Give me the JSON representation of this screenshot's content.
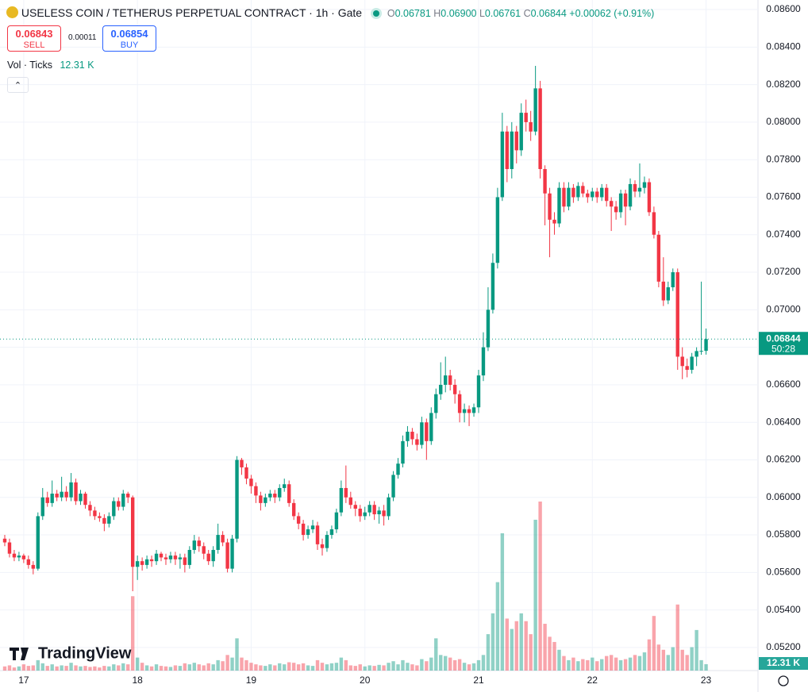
{
  "chart_data": {
    "type": "candlestick",
    "title": "USELESS COIN / TETHERUS PERPETUAL CONTRACT · 1h · Gate",
    "legend": {
      "o_label": "O",
      "o": "0.06781",
      "h_label": "H",
      "h": "0.06900",
      "l_label": "L",
      "l": "0.06761",
      "c_label": "C",
      "c": "0.06844",
      "change": "+0.00062 (+0.91%)"
    },
    "sell": {
      "price": "0.06843",
      "label": "SELL"
    },
    "spread": "0.00011",
    "buy": {
      "price": "0.06854",
      "label": "BUY"
    },
    "volume_name": "Vol · Ticks",
    "volume_legend": "12.31 K",
    "watermark": "TradingView",
    "last_price": {
      "value": 0.06844,
      "label": "0.06844"
    },
    "countdown": "50:28",
    "up_color": "#089981",
    "down_color": "#f23645",
    "grid": true,
    "ylim": [
      0.05077,
      0.08651
    ],
    "yticks": [
      {
        "value": 0.052,
        "label": "0.05200"
      },
      {
        "value": 0.054,
        "label": "0.05400"
      },
      {
        "value": 0.056,
        "label": "0.05600"
      },
      {
        "value": 0.058,
        "label": "0.05800"
      },
      {
        "value": 0.06,
        "label": "0.06000"
      },
      {
        "value": 0.062,
        "label": "0.06200"
      },
      {
        "value": 0.064,
        "label": "0.06400"
      },
      {
        "value": 0.066,
        "label": "0.06600"
      },
      {
        "value": 0.068,
        "label": "0.06800"
      },
      {
        "value": 0.07,
        "label": "0.07000"
      },
      {
        "value": 0.072,
        "label": "0.07200"
      },
      {
        "value": 0.074,
        "label": "0.07400"
      },
      {
        "value": 0.076,
        "label": "0.07600"
      },
      {
        "value": 0.078,
        "label": "0.07800"
      },
      {
        "value": 0.08,
        "label": "0.08000"
      },
      {
        "value": 0.082,
        "label": "0.08200"
      },
      {
        "value": 0.084,
        "label": "0.08400"
      },
      {
        "value": 0.086,
        "label": "0.08600"
      }
    ],
    "categories": [
      null,
      null,
      null,
      null,
      "17",
      null,
      null,
      null,
      null,
      null,
      null,
      null,
      null,
      null,
      null,
      null,
      null,
      null,
      null,
      null,
      null,
      null,
      null,
      null,
      null,
      null,
      null,
      null,
      "18",
      null,
      null,
      null,
      null,
      null,
      null,
      null,
      null,
      null,
      null,
      null,
      null,
      null,
      null,
      null,
      null,
      null,
      null,
      null,
      null,
      null,
      null,
      null,
      "19",
      null,
      null,
      null,
      null,
      null,
      null,
      null,
      null,
      null,
      null,
      null,
      null,
      null,
      null,
      null,
      null,
      null,
      null,
      null,
      null,
      null,
      null,
      null,
      "20",
      null,
      null,
      null,
      null,
      null,
      null,
      null,
      null,
      null,
      null,
      null,
      null,
      null,
      null,
      null,
      null,
      null,
      null,
      null,
      null,
      null,
      null,
      null,
      "21",
      null,
      null,
      null,
      null,
      null,
      null,
      null,
      null,
      null,
      null,
      null,
      null,
      null,
      null,
      null,
      null,
      null,
      null,
      null,
      null,
      null,
      null,
      null,
      "22",
      null,
      null,
      null,
      null,
      null,
      null,
      null,
      null,
      null,
      null,
      null,
      null,
      null,
      null,
      null,
      null,
      null,
      null,
      null,
      null,
      null,
      null,
      null,
      "23"
    ],
    "open": [
      0.0578,
      0.0576,
      0.057,
      0.0568,
      0.0569,
      0.0567,
      0.0564,
      0.0562,
      0.059,
      0.06,
      0.0597,
      0.0602,
      0.06,
      0.0603,
      0.06,
      0.0608,
      0.0598,
      0.0602,
      0.0596,
      0.0593,
      0.059,
      0.0589,
      0.0586,
      0.059,
      0.0598,
      0.0595,
      0.0602,
      0.06,
      0.0563,
      0.0566,
      0.0564,
      0.0567,
      0.0566,
      0.057,
      0.0568,
      0.0567,
      0.0569,
      0.0567,
      0.0568,
      0.0564,
      0.0572,
      0.0577,
      0.0574,
      0.057,
      0.0566,
      0.0572,
      0.058,
      0.0576,
      0.0562,
      0.0578,
      0.062,
      0.0616,
      0.061,
      0.0606,
      0.0601,
      0.0597,
      0.06,
      0.0602,
      0.06,
      0.0605,
      0.0607,
      0.0597,
      0.059,
      0.0586,
      0.058,
      0.0583,
      0.0585,
      0.0575,
      0.0573,
      0.058,
      0.0583,
      0.0592,
      0.0605,
      0.06,
      0.0596,
      0.0594,
      0.059,
      0.0592,
      0.0596,
      0.0591,
      0.0593,
      0.059,
      0.06,
      0.0612,
      0.0618,
      0.063,
      0.0635,
      0.0631,
      0.0628,
      0.064,
      0.063,
      0.0645,
      0.0655,
      0.066,
      0.0665,
      0.066,
      0.0655,
      0.0645,
      0.0647,
      0.0645,
      0.0648,
      0.0665,
      0.068,
      0.07,
      0.0725,
      0.076,
      0.0795,
      0.0775,
      0.0795,
      0.0785,
      0.0805,
      0.08,
      0.0795,
      0.0818,
      0.0775,
      0.0762,
      0.0748,
      0.0746,
      0.0765,
      0.0755,
      0.0765,
      0.076,
      0.0766,
      0.0762,
      0.076,
      0.0763,
      0.076,
      0.0765,
      0.0758,
      0.0755,
      0.0752,
      0.0762,
      0.0755,
      0.0767,
      0.0763,
      0.0765,
      0.0768,
      0.0752,
      0.074,
      0.0715,
      0.0705,
      0.0712,
      0.072,
      0.0675,
      0.067,
      0.0668,
      0.0675,
      0.0678,
      0.06781
    ],
    "high": [
      0.058,
      0.0578,
      0.0572,
      0.0571,
      0.057,
      0.0569,
      0.0566,
      0.0592,
      0.0605,
      0.0603,
      0.0609,
      0.0604,
      0.0611,
      0.0606,
      0.0613,
      0.061,
      0.0604,
      0.0603,
      0.0598,
      0.0595,
      0.0592,
      0.0591,
      0.0592,
      0.06,
      0.06,
      0.0604,
      0.0603,
      0.0601,
      0.0569,
      0.0568,
      0.0569,
      0.0569,
      0.0572,
      0.0571,
      0.057,
      0.0571,
      0.0571,
      0.057,
      0.057,
      0.0574,
      0.058,
      0.0579,
      0.0576,
      0.0572,
      0.0574,
      0.0586,
      0.0582,
      0.0578,
      0.058,
      0.0622,
      0.0621,
      0.0618,
      0.0612,
      0.0608,
      0.0603,
      0.0602,
      0.0604,
      0.0604,
      0.0607,
      0.061,
      0.0609,
      0.0599,
      0.0592,
      0.0588,
      0.0585,
      0.0588,
      0.0587,
      0.0578,
      0.0582,
      0.0585,
      0.0594,
      0.0609,
      0.0617,
      0.0603,
      0.0598,
      0.0596,
      0.0595,
      0.0598,
      0.0598,
      0.0595,
      0.0596,
      0.0602,
      0.0614,
      0.0621,
      0.0633,
      0.0638,
      0.0637,
      0.0634,
      0.0643,
      0.0642,
      0.0648,
      0.0658,
      0.0672,
      0.0675,
      0.0668,
      0.0663,
      0.0657,
      0.065,
      0.0649,
      0.065,
      0.0668,
      0.0688,
      0.0712,
      0.073,
      0.0765,
      0.0805,
      0.0798,
      0.08,
      0.0798,
      0.081,
      0.0812,
      0.0806,
      0.083,
      0.0822,
      0.0777,
      0.0765,
      0.0752,
      0.0768,
      0.0768,
      0.0768,
      0.0767,
      0.0768,
      0.0768,
      0.0764,
      0.0765,
      0.0765,
      0.0767,
      0.0767,
      0.076,
      0.0758,
      0.0764,
      0.0764,
      0.077,
      0.0769,
      0.0778,
      0.0771,
      0.077,
      0.0755,
      0.0742,
      0.0728,
      0.0715,
      0.0722,
      0.0722,
      0.068,
      0.0674,
      0.0677,
      0.068,
      0.0715,
      0.069
    ],
    "low": [
      0.0574,
      0.0568,
      0.0566,
      0.0566,
      0.0565,
      0.0562,
      0.0559,
      0.0561,
      0.0588,
      0.0595,
      0.0595,
      0.0598,
      0.0598,
      0.0598,
      0.0598,
      0.0596,
      0.0596,
      0.0594,
      0.059,
      0.0588,
      0.0587,
      0.0582,
      0.0584,
      0.0588,
      0.0593,
      0.0593,
      0.0597,
      0.055,
      0.0556,
      0.0561,
      0.0562,
      0.0563,
      0.0564,
      0.0566,
      0.0564,
      0.0565,
      0.0564,
      0.0562,
      0.056,
      0.0562,
      0.057,
      0.0571,
      0.0567,
      0.0564,
      0.0563,
      0.057,
      0.0574,
      0.056,
      0.056,
      0.0576,
      0.0612,
      0.0607,
      0.0602,
      0.0597,
      0.0593,
      0.0595,
      0.0598,
      0.0597,
      0.0598,
      0.0603,
      0.0595,
      0.0588,
      0.0583,
      0.0577,
      0.0578,
      0.0581,
      0.0572,
      0.0569,
      0.0571,
      0.0578,
      0.0581,
      0.059,
      0.0597,
      0.0594,
      0.059,
      0.0587,
      0.0588,
      0.059,
      0.0588,
      0.0586,
      0.0585,
      0.0588,
      0.0598,
      0.061,
      0.0616,
      0.0627,
      0.0628,
      0.0625,
      0.0626,
      0.062,
      0.0628,
      0.0642,
      0.0652,
      0.0656,
      0.0657,
      0.065,
      0.064,
      0.064,
      0.0638,
      0.0643,
      0.0645,
      0.0662,
      0.0678,
      0.0698,
      0.0722,
      0.0758,
      0.0768,
      0.077,
      0.0778,
      0.0782,
      0.0795,
      0.079,
      0.0793,
      0.077,
      0.0745,
      0.0728,
      0.074,
      0.0744,
      0.0752,
      0.0753,
      0.0757,
      0.0758,
      0.076,
      0.0757,
      0.0758,
      0.0757,
      0.0758,
      0.0755,
      0.0742,
      0.0748,
      0.0749,
      0.0745,
      0.0753,
      0.076,
      0.076,
      0.0762,
      0.075,
      0.0738,
      0.0712,
      0.0702,
      0.0703,
      0.071,
      0.0668,
      0.0663,
      0.0664,
      0.0666,
      0.067,
      0.0676,
      0.06761
    ],
    "close": [
      0.0576,
      0.057,
      0.0568,
      0.0569,
      0.0567,
      0.0564,
      0.0562,
      0.059,
      0.06,
      0.0597,
      0.0602,
      0.06,
      0.0603,
      0.06,
      0.0608,
      0.0598,
      0.0602,
      0.0596,
      0.0593,
      0.059,
      0.0589,
      0.0586,
      0.059,
      0.0598,
      0.0595,
      0.0602,
      0.06,
      0.0563,
      0.0566,
      0.0564,
      0.0567,
      0.0566,
      0.057,
      0.0568,
      0.0567,
      0.0569,
      0.0567,
      0.0568,
      0.0564,
      0.0572,
      0.0577,
      0.0574,
      0.057,
      0.0566,
      0.0572,
      0.058,
      0.0576,
      0.0562,
      0.0578,
      0.062,
      0.0616,
      0.061,
      0.0606,
      0.0601,
      0.0597,
      0.06,
      0.0602,
      0.06,
      0.0605,
      0.0607,
      0.0597,
      0.059,
      0.0586,
      0.058,
      0.0583,
      0.0585,
      0.0575,
      0.0573,
      0.058,
      0.0583,
      0.0592,
      0.0605,
      0.06,
      0.0596,
      0.0594,
      0.059,
      0.0592,
      0.0596,
      0.0591,
      0.0593,
      0.059,
      0.06,
      0.0612,
      0.0618,
      0.063,
      0.0635,
      0.0631,
      0.0628,
      0.064,
      0.063,
      0.0645,
      0.0655,
      0.066,
      0.0665,
      0.066,
      0.0655,
      0.0645,
      0.0647,
      0.0645,
      0.0648,
      0.0665,
      0.068,
      0.07,
      0.0725,
      0.076,
      0.0795,
      0.0775,
      0.0795,
      0.0785,
      0.0805,
      0.08,
      0.0795,
      0.0818,
      0.0775,
      0.0762,
      0.0748,
      0.0746,
      0.0765,
      0.0755,
      0.0765,
      0.076,
      0.0766,
      0.0762,
      0.076,
      0.0763,
      0.076,
      0.0765,
      0.0758,
      0.0755,
      0.0752,
      0.0762,
      0.0755,
      0.0767,
      0.0763,
      0.0765,
      0.0768,
      0.0752,
      0.074,
      0.0715,
      0.0705,
      0.0712,
      0.072,
      0.0675,
      0.067,
      0.0668,
      0.0675,
      0.0678,
      0.06781,
      0.06844
    ],
    "volume": [
      8,
      10,
      6,
      8,
      12,
      9,
      10,
      20,
      14,
      9,
      12,
      8,
      10,
      9,
      15,
      10,
      8,
      9,
      7,
      8,
      6,
      9,
      8,
      12,
      10,
      14,
      12,
      143,
      25,
      15,
      10,
      8,
      12,
      9,
      8,
      7,
      10,
      9,
      14,
      12,
      15,
      12,
      10,
      14,
      12,
      20,
      18,
      30,
      25,
      62,
      25,
      20,
      15,
      12,
      10,
      9,
      12,
      10,
      14,
      12,
      16,
      15,
      12,
      14,
      10,
      9,
      20,
      15,
      12,
      14,
      15,
      25,
      20,
      10,
      9,
      12,
      8,
      10,
      9,
      11,
      10,
      15,
      18,
      12,
      20,
      15,
      12,
      10,
      22,
      18,
      25,
      62,
      30,
      28,
      25,
      20,
      22,
      15,
      12,
      14,
      20,
      30,
      70,
      110,
      170,
      264,
      100,
      80,
      95,
      110,
      95,
      70,
      290,
      325,
      90,
      65,
      55,
      40,
      28,
      20,
      25,
      18,
      22,
      20,
      25,
      18,
      22,
      28,
      30,
      25,
      20,
      22,
      25,
      30,
      28,
      35,
      60,
      105,
      50,
      40,
      30,
      45,
      127,
      40,
      30,
      45,
      78,
      20,
      12.31
    ],
    "volume_badge": "12.31 K"
  }
}
